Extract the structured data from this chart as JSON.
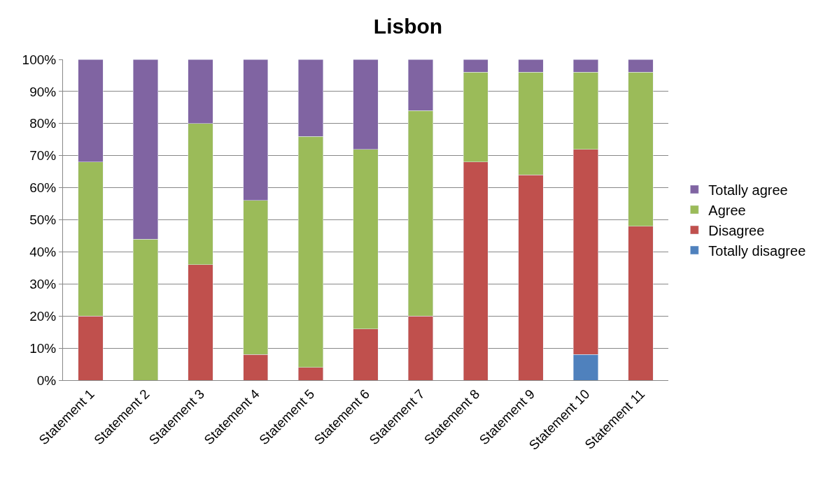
{
  "chart_data": {
    "type": "bar",
    "title": "Lisbon",
    "stacked": true,
    "grid": "y",
    "legend": "right",
    "categories": [
      "Statement 1",
      "Statement 2",
      "Statement 3",
      "Statement 4",
      "Statement 5",
      "Statement 6",
      "Statement 7",
      "Statement 8",
      "Statement 9",
      "Statement 10",
      "Statement 11"
    ],
    "series": [
      {
        "name": "Totally disagree",
        "color": "#4f81bd",
        "values": [
          0,
          0,
          0,
          0,
          0,
          0,
          0,
          0,
          0,
          8,
          0
        ]
      },
      {
        "name": "Disagree",
        "color": "#c0504d",
        "values": [
          20,
          0,
          36,
          8,
          4,
          16,
          20,
          68,
          64,
          64,
          48
        ]
      },
      {
        "name": "Agree",
        "color": "#9bbb59",
        "values": [
          48,
          44,
          44,
          48,
          72,
          56,
          64,
          28,
          32,
          24,
          48
        ]
      },
      {
        "name": "Totally agree",
        "color": "#8064a2",
        "values": [
          32,
          56,
          20,
          44,
          24,
          28,
          16,
          4,
          4,
          4,
          4
        ]
      }
    ],
    "ylim": [
      0,
      100
    ],
    "yticks": [
      {
        "value": 0,
        "label": "0%"
      },
      {
        "value": 10,
        "label": "10%"
      },
      {
        "value": 20,
        "label": "20%"
      },
      {
        "value": 30,
        "label": "30%"
      },
      {
        "value": 40,
        "label": "40%"
      },
      {
        "value": 50,
        "label": "50%"
      },
      {
        "value": 60,
        "label": "60%"
      },
      {
        "value": 70,
        "label": "70%"
      },
      {
        "value": 80,
        "label": "80%"
      },
      {
        "value": 90,
        "label": "90%"
      },
      {
        "value": 100,
        "label": "100%"
      }
    ]
  }
}
